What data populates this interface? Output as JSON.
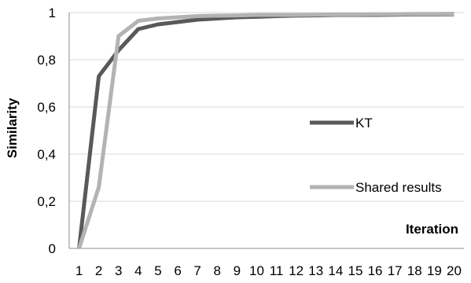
{
  "chart_data": {
    "type": "line",
    "title": "",
    "xlabel": "Iteration",
    "ylabel": "Similarity",
    "x": [
      "1",
      "2",
      "3",
      "4",
      "5",
      "6",
      "7",
      "8",
      "9",
      "10",
      "11",
      "12",
      "13",
      "14",
      "15",
      "16",
      "17",
      "18",
      "19",
      "20"
    ],
    "ylim": [
      0,
      1
    ],
    "yticks": [
      "0",
      "0,2",
      "0,4",
      "0,6",
      "0,8",
      "1"
    ],
    "grid": "horizontal",
    "legend": "right",
    "series": [
      {
        "name": "KT",
        "color": "#595959",
        "values": [
          0,
          0.73,
          0.84,
          0.93,
          0.95,
          0.96,
          0.97,
          0.975,
          0.98,
          0.982,
          0.985,
          0.987,
          0.988,
          0.99,
          0.99,
          0.99,
          0.991,
          0.992,
          0.992,
          0.993
        ]
      },
      {
        "name": "Shared results",
        "color": "#b3b3b3",
        "values": [
          0,
          0.26,
          0.9,
          0.965,
          0.975,
          0.98,
          0.985,
          0.987,
          0.988,
          0.99,
          0.99,
          0.99,
          0.991,
          0.992,
          0.992,
          0.993,
          0.993,
          0.994,
          0.994,
          0.995
        ]
      }
    ]
  }
}
